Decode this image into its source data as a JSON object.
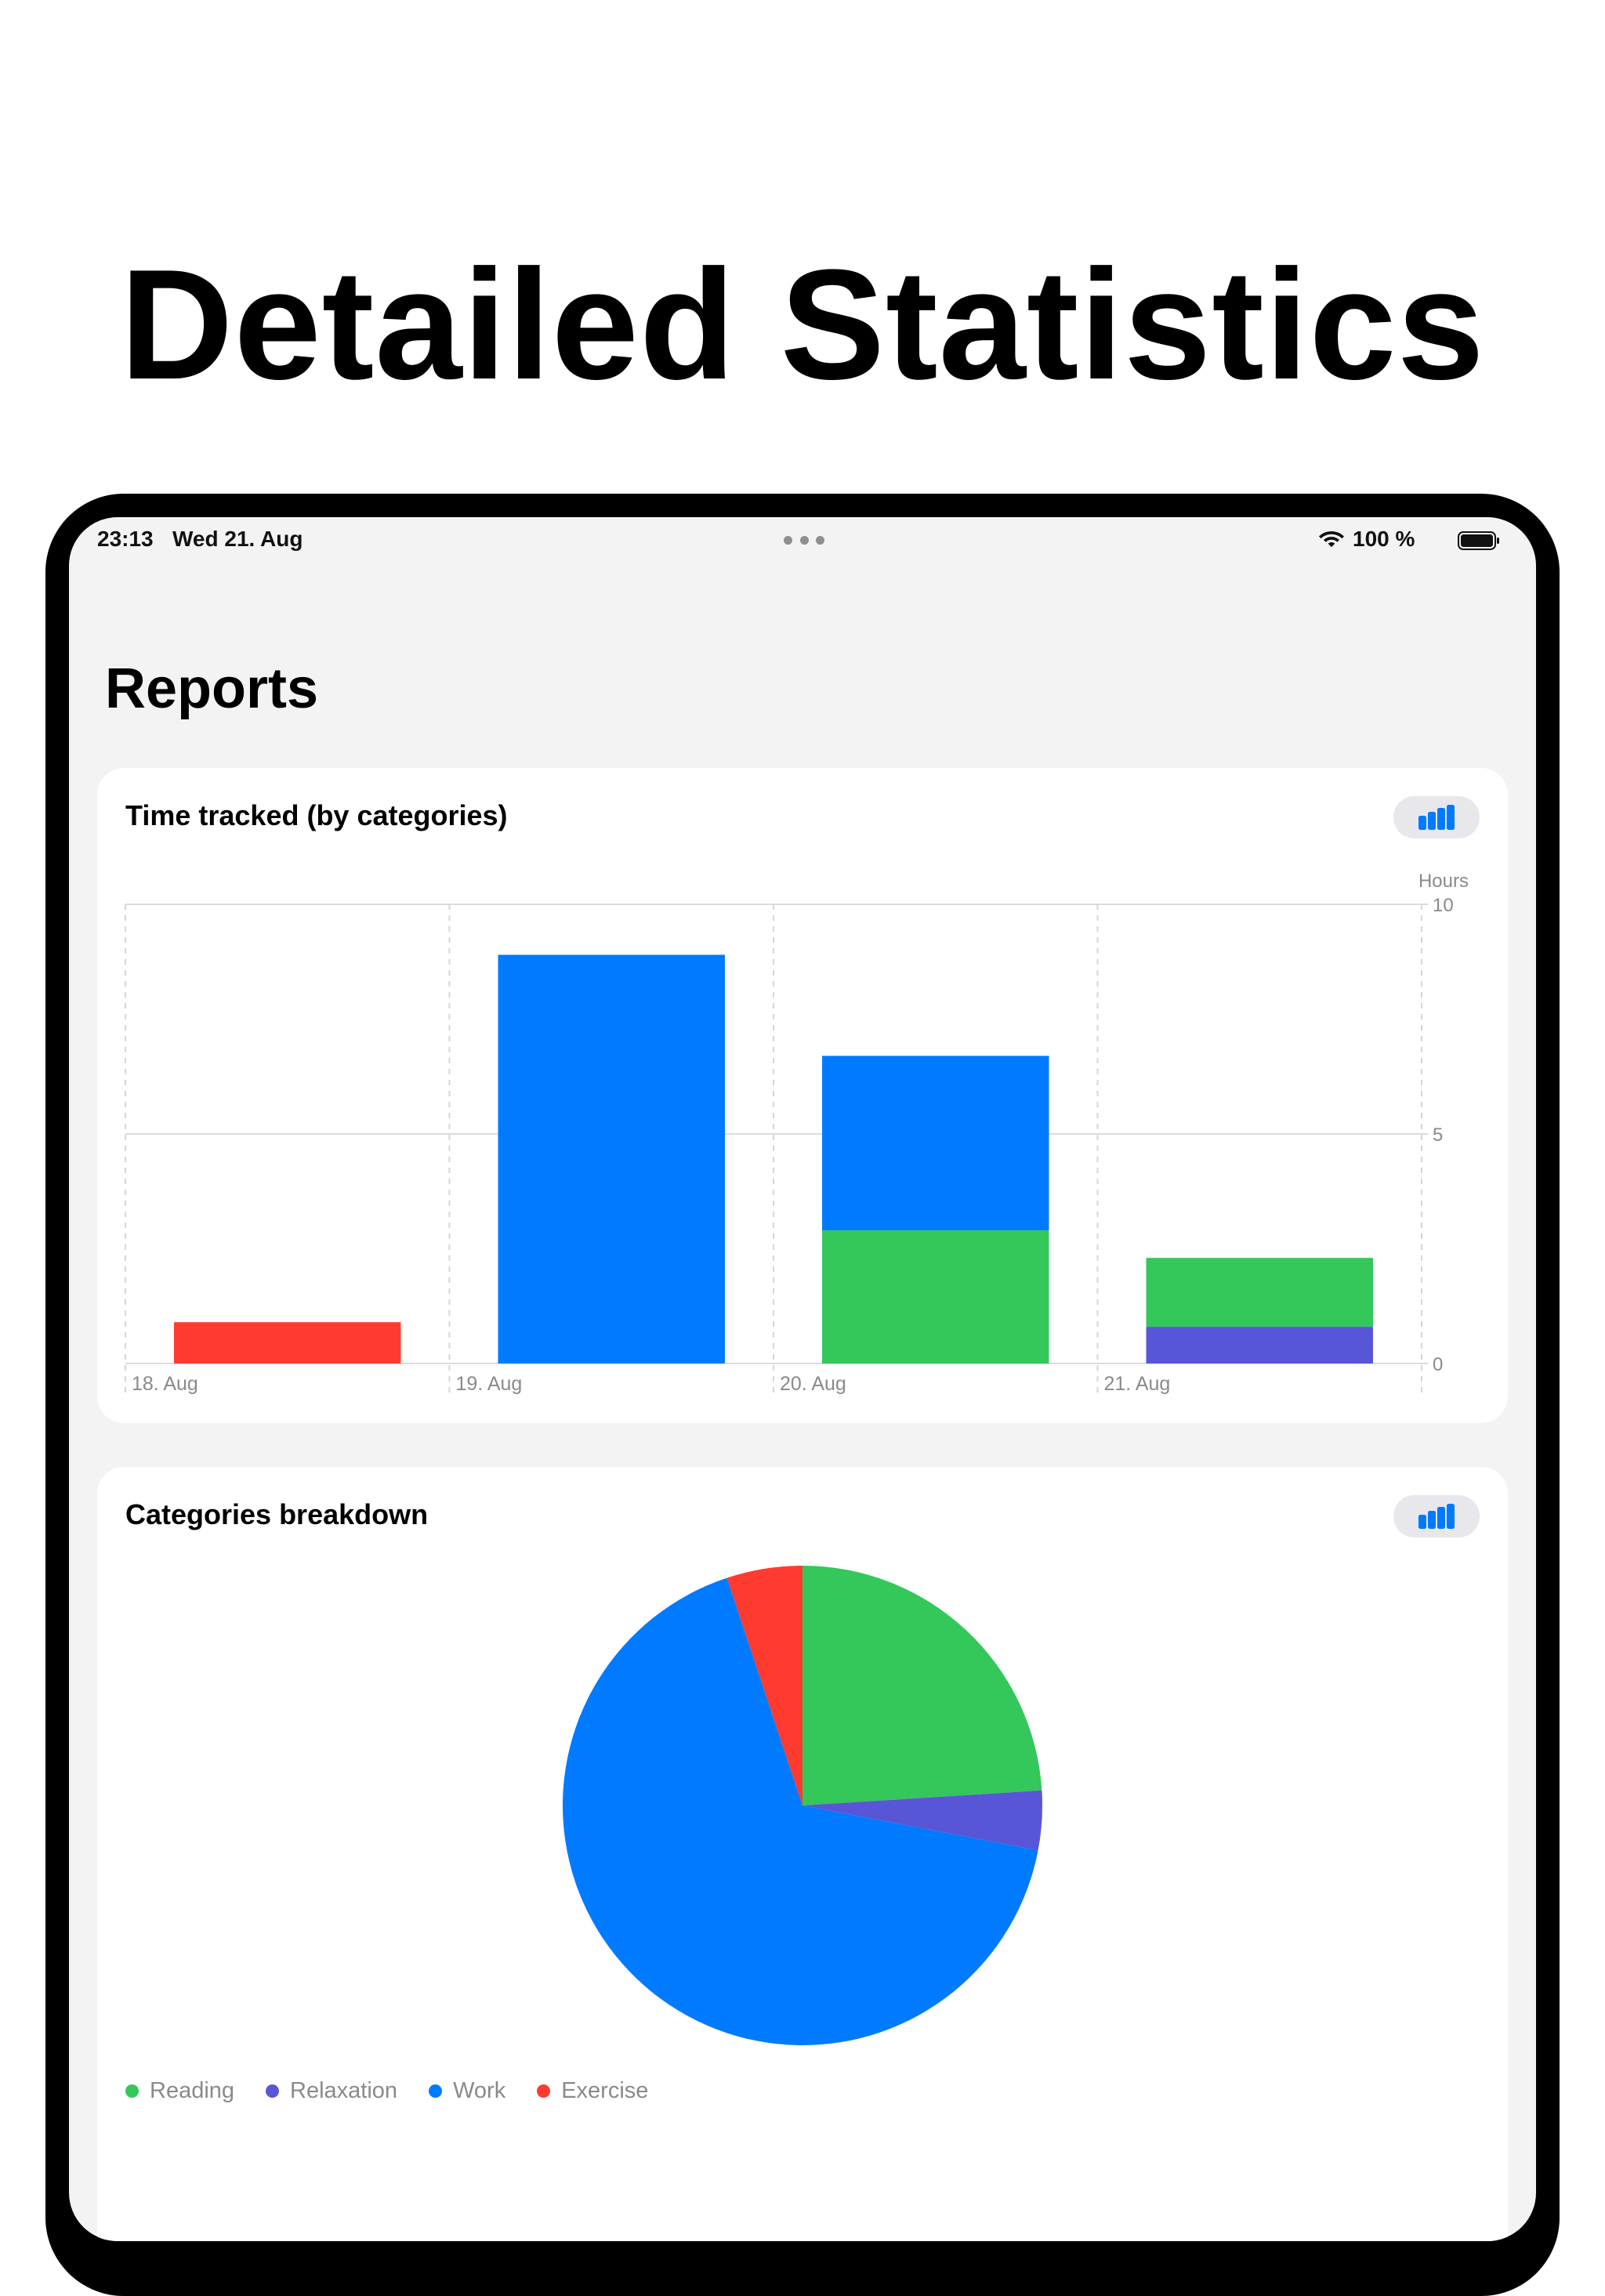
{
  "headline": "Detailed Statistics",
  "status_bar": {
    "time": "23:13",
    "date": "Wed 21. Aug",
    "battery": "100 %",
    "icons": [
      "more-dots-icon",
      "wifi-icon",
      "battery-icon"
    ]
  },
  "page": {
    "title": "Reports"
  },
  "colors": {
    "reading": "#34c759",
    "relaxation": "#5856d6",
    "work": "#007aff",
    "exercise": "#ff3b30",
    "accent": "#007aff"
  },
  "cards": [
    {
      "title": "Time tracked (by categories)",
      "toggle_icon": "bar-chart-icon"
    },
    {
      "title": "Categories breakdown",
      "toggle_icon": "bar-chart-icon"
    }
  ],
  "chart_data": [
    {
      "type": "bar",
      "stacked": true,
      "ylabel": "Hours",
      "ylim": [
        0,
        10
      ],
      "yticks": [
        "10",
        "5",
        "0"
      ],
      "y_axis_side": "right",
      "grid": true,
      "categories": [
        "18. Aug",
        "19. Aug",
        "20. Aug",
        "21. Aug"
      ],
      "series": [
        {
          "name": "Relaxation",
          "color": "#5856d6",
          "values": [
            0,
            0,
            0,
            0.8
          ]
        },
        {
          "name": "Reading",
          "color": "#34c759",
          "values": [
            0,
            0,
            2.9,
            1.5
          ]
        },
        {
          "name": "Work",
          "color": "#007aff",
          "values": [
            0,
            8.9,
            3.8,
            0
          ]
        },
        {
          "name": "Exercise",
          "color": "#ff3b30",
          "values": [
            0.9,
            0,
            0,
            0
          ]
        }
      ]
    },
    {
      "type": "pie",
      "slices": [
        {
          "label": "Reading",
          "value": 24.0,
          "color": "#34c759"
        },
        {
          "label": "Relaxation",
          "value": 4.0,
          "color": "#5856d6"
        },
        {
          "label": "Work",
          "value": 66.9,
          "color": "#007aff"
        },
        {
          "label": "Exercise",
          "value": 5.1,
          "color": "#ff3b30"
        }
      ],
      "legend_placement": "bottom-left"
    }
  ]
}
